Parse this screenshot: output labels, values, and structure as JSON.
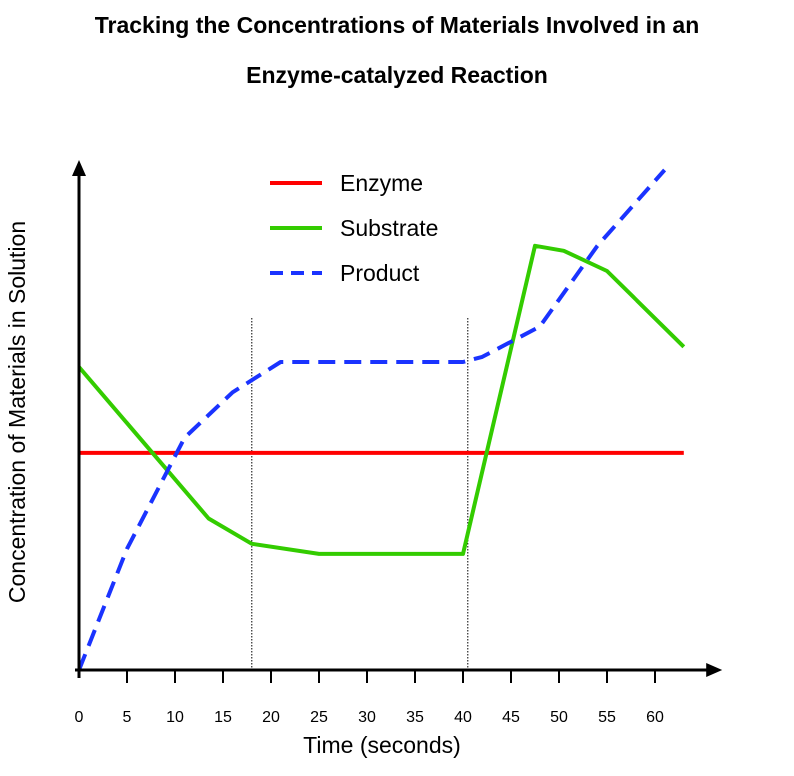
{
  "chart_data": {
    "type": "line",
    "title_line1": "Tracking the Concentrations of Materials Involved in an",
    "title_line2": "Enzyme-catalyzed Reaction",
    "xlabel": "Time (seconds)",
    "ylabel": "Concentration of Materials in Solution",
    "xlim": [
      0,
      67
    ],
    "ylim": [
      0,
      10
    ],
    "x_ticks": [
      0,
      5,
      10,
      15,
      20,
      25,
      30,
      35,
      40,
      45,
      50,
      55,
      60
    ],
    "x_tick_labels": [
      "0",
      "5",
      "10",
      "15",
      "20",
      "25",
      "30",
      "35",
      "40",
      "45",
      "50",
      "55",
      "60"
    ],
    "y_ticks_labeled": false,
    "grid": false,
    "legend_position": "top-center",
    "vertical_markers": [
      18,
      40.5
    ],
    "series": [
      {
        "name": "Enzyme",
        "color": "#ff0000",
        "style": "solid",
        "x": [
          0,
          63
        ],
        "y": [
          4.3,
          4.3
        ]
      },
      {
        "name": "Substrate",
        "color": "#33cc00",
        "style": "solid",
        "x": [
          0,
          13.5,
          18,
          25,
          40,
          47.5,
          50.5,
          55,
          63
        ],
        "y": [
          6.0,
          3.0,
          2.5,
          2.3,
          2.3,
          8.4,
          8.3,
          7.9,
          6.4
        ]
      },
      {
        "name": "Product",
        "color": "#1a33ff",
        "style": "dashed",
        "x": [
          0,
          5,
          11,
          16,
          21,
          40,
          42,
          48,
          54,
          61
        ],
        "y": [
          0,
          2.4,
          4.6,
          5.5,
          6.1,
          6.1,
          6.2,
          6.8,
          8.4,
          9.9
        ]
      }
    ]
  }
}
